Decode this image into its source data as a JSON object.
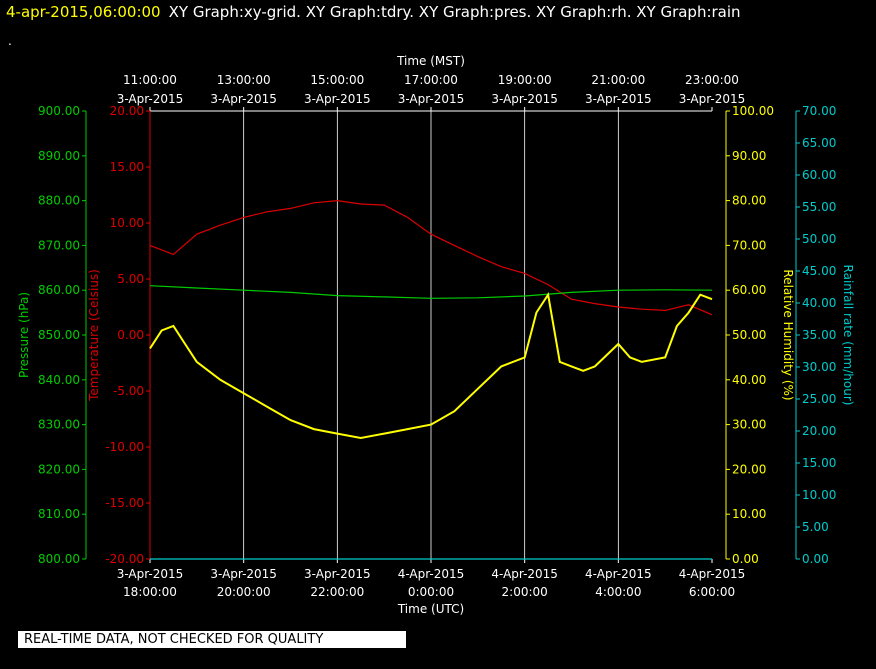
{
  "header": {
    "date_time": "4-apr-2015,06:00:00",
    "graph_titles": "XY Graph:xy-grid.  XY Graph:tdry.  XY Graph:pres.  XY Graph:rh.  XY Graph:rain",
    "dot": "."
  },
  "quality_notice": "REAL-TIME DATA, NOT CHECKED FOR QUALITY",
  "colors": {
    "pressure": "#00cc00",
    "temperature": "#dd0000",
    "humidity": "#ffff00",
    "rainfall": "#00cccc",
    "grid": "#ffffff"
  },
  "chart_data": {
    "type": "line",
    "top_axis": {
      "label": "Time (MST)",
      "ticks": [
        {
          "time": "11:00:00",
          "date": "3-Apr-2015"
        },
        {
          "time": "13:00:00",
          "date": "3-Apr-2015"
        },
        {
          "time": "15:00:00",
          "date": "3-Apr-2015"
        },
        {
          "time": "17:00:00",
          "date": "3-Apr-2015"
        },
        {
          "time": "19:00:00",
          "date": "3-Apr-2015"
        },
        {
          "time": "21:00:00",
          "date": "3-Apr-2015"
        },
        {
          "time": "23:00:00",
          "date": "3-Apr-2015"
        }
      ]
    },
    "bottom_axis": {
      "label": "Time (UTC)",
      "ticks": [
        {
          "date": "3-Apr-2015",
          "time": "18:00:00"
        },
        {
          "date": "3-Apr-2015",
          "time": "20:00:00"
        },
        {
          "date": "3-Apr-2015",
          "time": "22:00:00"
        },
        {
          "date": "4-Apr-2015",
          "time": "0:00:00"
        },
        {
          "date": "4-Apr-2015",
          "time": "2:00:00"
        },
        {
          "date": "4-Apr-2015",
          "time": "4:00:00"
        },
        {
          "date": "4-Apr-2015",
          "time": "6:00:00"
        }
      ]
    },
    "xlim_hours_utc": [
      0,
      12
    ],
    "y_axes": {
      "pressure": {
        "label": "Pressure (hPa)",
        "ylim": [
          800,
          900
        ],
        "ticks": [
          "800.00",
          "810.00",
          "820.00",
          "830.00",
          "840.00",
          "850.00",
          "860.00",
          "870.00",
          "880.00",
          "890.00",
          "900.00"
        ]
      },
      "temperature": {
        "label": "Temperature (Celsius)",
        "ylim": [
          -20,
          20
        ],
        "ticks": [
          "-20.00",
          "-15.00",
          "-10.00",
          "-5.00",
          "0.00",
          "5.00",
          "10.00",
          "15.00",
          "20.00"
        ]
      },
      "humidity": {
        "label": "Relative Humidity (%)",
        "ylim": [
          0,
          100
        ],
        "ticks": [
          "0.00",
          "10.00",
          "20.00",
          "30.00",
          "40.00",
          "50.00",
          "60.00",
          "70.00",
          "80.00",
          "90.00",
          "100.00"
        ]
      },
      "rainfall": {
        "label": "Rainfall rate (mm/hour)",
        "ylim": [
          0,
          70
        ],
        "ticks": [
          "0.00",
          "5.00",
          "10.00",
          "15.00",
          "20.00",
          "25.00",
          "30.00",
          "35.00",
          "40.00",
          "45.00",
          "50.00",
          "55.00",
          "60.00",
          "65.00",
          "70.00"
        ]
      }
    },
    "grid": true,
    "series": [
      {
        "name": "tdry",
        "axis": "temperature",
        "x": [
          0,
          0.5,
          1,
          1.5,
          2,
          2.5,
          3,
          3.5,
          4,
          4.5,
          5,
          5.5,
          6,
          6.5,
          7,
          7.5,
          8,
          8.5,
          9,
          9.5,
          10,
          10.5,
          11,
          11.5,
          12
        ],
        "y": [
          8,
          7.2,
          9,
          9.8,
          10.5,
          11,
          11.3,
          11.8,
          12,
          11.7,
          11.6,
          10.5,
          9,
          8,
          7,
          6.1,
          5.5,
          4.5,
          3.2,
          2.8,
          2.5,
          2.3,
          2.2,
          2.7,
          1.8
        ]
      },
      {
        "name": "pres",
        "axis": "pressure",
        "x": [
          0,
          1,
          2,
          3,
          4,
          5,
          6,
          7,
          8,
          9,
          10,
          11,
          12
        ],
        "y": [
          861,
          860.5,
          860,
          859.5,
          858.8,
          858.5,
          858.2,
          858.3,
          858.7,
          859.5,
          860,
          860.1,
          860
        ]
      },
      {
        "name": "rh",
        "axis": "humidity",
        "x": [
          0,
          0.25,
          0.5,
          0.75,
          1,
          1.5,
          2,
          2.5,
          3,
          3.5,
          4,
          4.5,
          5,
          5.5,
          6,
          6.5,
          7,
          7.5,
          8,
          8.25,
          8.5,
          8.75,
          9,
          9.25,
          9.5,
          10,
          10.25,
          10.5,
          11,
          11.25,
          11.5,
          11.75,
          12
        ],
        "y": [
          47,
          51,
          52,
          48,
          44,
          40,
          37,
          34,
          31,
          29,
          28,
          27,
          28,
          29,
          30,
          33,
          38,
          43,
          45,
          55,
          59,
          44,
          43,
          42,
          43,
          48,
          45,
          44,
          45,
          52,
          55,
          59,
          58
        ]
      },
      {
        "name": "rain",
        "axis": "rainfall",
        "x": [
          0,
          12
        ],
        "y": [
          0,
          0
        ]
      }
    ]
  }
}
